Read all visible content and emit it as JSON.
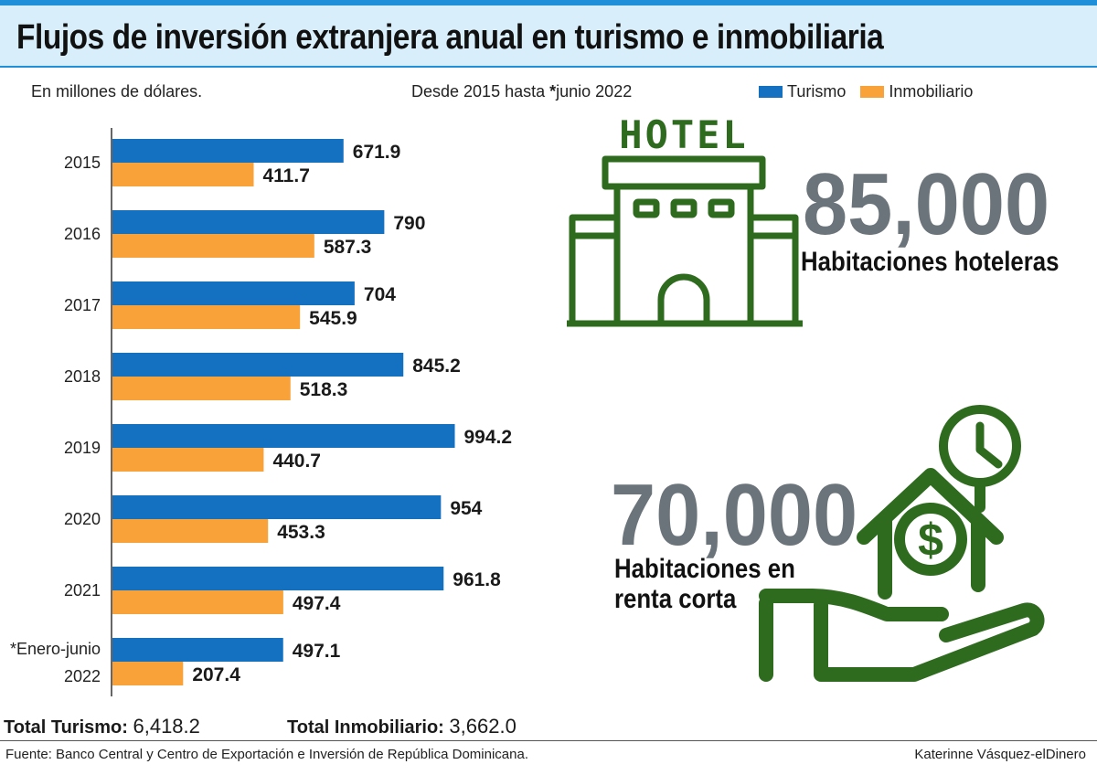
{
  "title": "Flujos de inversión extranjera anual en turismo e inmobiliaria",
  "units_note": "En millones de dólares.",
  "period_prefix": "Desde 2015 hasta ",
  "period_star": "*",
  "period_suffix": "junio 2022",
  "legend": [
    {
      "name": "Turismo",
      "color": "#1471c2"
    },
    {
      "name": "Inmobiliario",
      "color": "#f9a23a"
    }
  ],
  "chart_data": {
    "type": "bar",
    "orientation": "horizontal",
    "categories": [
      "2015",
      "2016",
      "2017",
      "2018",
      "2019",
      "2020",
      "2021",
      "*Enero-junio 2022"
    ],
    "category_lines": [
      [
        "2015"
      ],
      [
        "2016"
      ],
      [
        "2017"
      ],
      [
        "2018"
      ],
      [
        "2019"
      ],
      [
        "2020"
      ],
      [
        "2021"
      ],
      [
        "*Enero-junio",
        "2022"
      ]
    ],
    "series": [
      {
        "name": "Turismo",
        "color": "#1471c2",
        "values": [
          671.9,
          790,
          704,
          845.2,
          994.2,
          954,
          961.8,
          497.1
        ],
        "labels": [
          "671.9",
          "790",
          "704",
          "845.2",
          "994.2",
          "954",
          "961.8",
          "497.1"
        ]
      },
      {
        "name": "Inmobiliario",
        "color": "#f9a23a",
        "values": [
          411.7,
          587.3,
          545.9,
          518.3,
          440.7,
          453.3,
          497.4,
          207.4
        ],
        "labels": [
          "411.7",
          "587.3",
          "545.9",
          "518.3",
          "440.7",
          "453.3",
          "497.4",
          "207.4"
        ]
      }
    ],
    "xlim": [
      0,
      1000
    ],
    "grid": false,
    "legend_position": "top-right"
  },
  "totals": {
    "turismo_label": "Total Turismo:",
    "turismo_value": "6,418.2",
    "inmobiliario_label": "Total Inmobiliario:",
    "inmobiliario_value": "3,662.0"
  },
  "hotel": {
    "icon": "hotel-building-icon",
    "sign": "HOTEL",
    "number": "85,000",
    "caption": "Habitaciones hoteleras",
    "color": "#2e6b1f"
  },
  "rental": {
    "icon": "house-in-hand-clock-icon",
    "currency_symbol": "$",
    "number": "70,000",
    "caption_line1": "Habitaciones en",
    "caption_line2": "renta corta",
    "color": "#2e6b1f"
  },
  "footer": {
    "source": "Fuente: Banco Central y Centro de Exportación e Inversión de República Dominicana.",
    "credit": "Katerinne Vásquez-elDinero"
  }
}
